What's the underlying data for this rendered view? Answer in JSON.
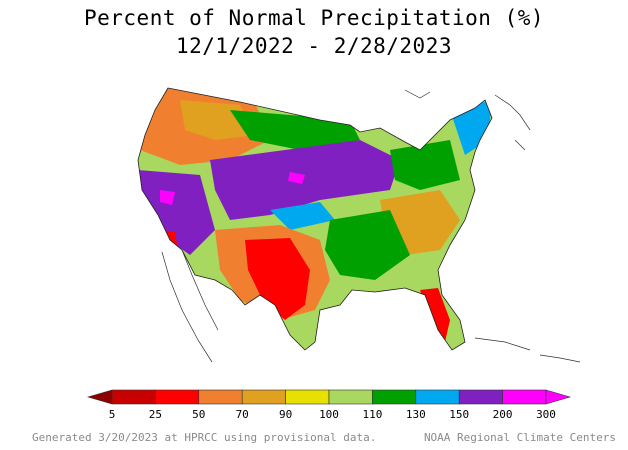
{
  "title": "Percent of Normal Precipitation (%)",
  "subtitle": "12/1/2022 - 2/28/2023",
  "legend": {
    "labels": [
      "5",
      "25",
      "50",
      "70",
      "90",
      "100",
      "110",
      "130",
      "150",
      "200",
      "300"
    ],
    "colors": [
      "#8b0000",
      "#c80000",
      "#ff0000",
      "#f08030",
      "#e0a020",
      "#e8e000",
      "#a8d860",
      "#00a000",
      "#00a8f0",
      "#8020c0",
      "#ff00ff"
    ]
  },
  "footer": {
    "left": "Generated 3/20/2023 at HPRCC using provisional data.",
    "right": "NOAA Regional Climate Centers"
  }
}
